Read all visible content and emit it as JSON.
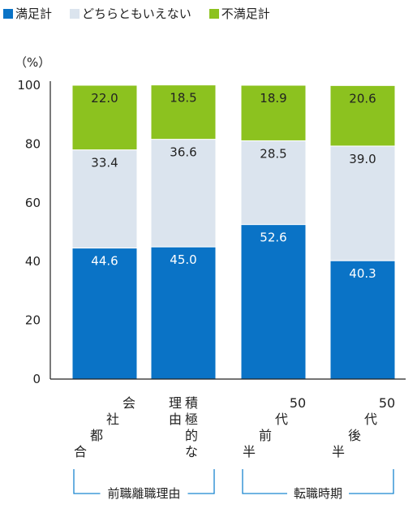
{
  "legend": {
    "items": [
      {
        "label": "満足計",
        "color": "#0a73c6"
      },
      {
        "label": "どちらともいえない",
        "color": "#dbe4ee"
      },
      {
        "label": "不満足計",
        "color": "#8cc21f"
      }
    ]
  },
  "chart_data": {
    "type": "bar",
    "stacked": true,
    "ylabel": "（%）",
    "ylim": [
      0,
      100
    ],
    "yticks": [
      "0",
      "20",
      "40",
      "60",
      "80",
      "100"
    ],
    "categories": [
      "会社都合",
      "積極的な理由",
      "50代前半",
      "50代後半"
    ],
    "category_lines": [
      [
        "会",
        "社",
        "都",
        "合"
      ],
      [
        "積極的な",
        "理由"
      ],
      [
        "50",
        "代",
        "前",
        "半"
      ],
      [
        "50",
        "代",
        "後",
        "半"
      ]
    ],
    "series": [
      {
        "name": "満足計",
        "color": "#0a73c6",
        "values": [
          44.6,
          45.0,
          52.6,
          40.3
        ],
        "labels": [
          "44.6",
          "45.0",
          "52.6",
          "40.3"
        ]
      },
      {
        "name": "どちらともいえない",
        "color": "#dbe4ee",
        "values": [
          33.4,
          36.6,
          28.5,
          39.0
        ],
        "labels": [
          "33.4",
          "36.6",
          "28.5",
          "39.0"
        ]
      },
      {
        "name": "不満足計",
        "color": "#8cc21f",
        "values": [
          22.0,
          18.5,
          18.9,
          20.6
        ],
        "labels": [
          "22.0",
          "18.5",
          "18.9",
          "20.6"
        ]
      }
    ],
    "groups": [
      {
        "label": "前職離職理由",
        "categories": [
          0,
          1
        ]
      },
      {
        "label": "転職時期",
        "categories": [
          2,
          3
        ]
      }
    ],
    "accent_color": "#1a86d0"
  }
}
